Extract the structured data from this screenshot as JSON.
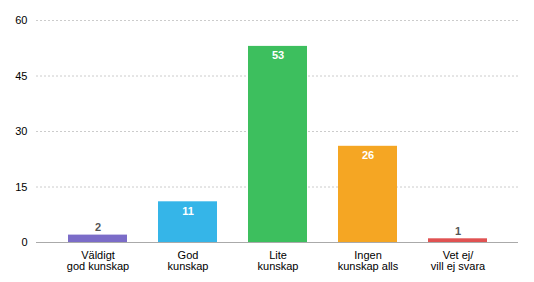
{
  "chart_data": {
    "type": "bar",
    "categories": [
      "Väldigt\ngod kunskap",
      "God\nkunskap",
      "Lite\nkunskap",
      "Ingen\nkunskap alls",
      "Vet ej/\nvill ej svara"
    ],
    "values": [
      2,
      11,
      53,
      26,
      1
    ],
    "colors": [
      "#7b6cc8",
      "#35b5e8",
      "#3dbf5e",
      "#f5a623",
      "#e05252"
    ],
    "ylim": [
      0,
      60
    ],
    "yticks": [
      0,
      15,
      30,
      45,
      60
    ],
    "grid": true,
    "data_labels": true
  }
}
